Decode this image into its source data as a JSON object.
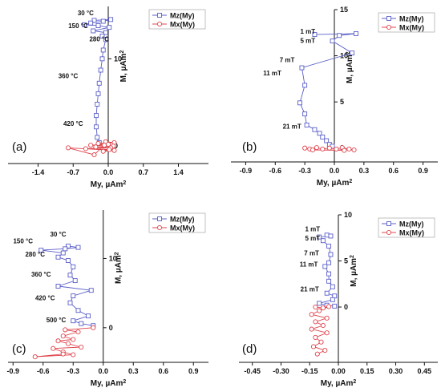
{
  "figure": {
    "colors": {
      "mz": "#5a5fc8",
      "mx": "#e0454e",
      "axis": "#111111"
    },
    "legend_labels": [
      "Mz(My)",
      "Mx(My)"
    ]
  },
  "chart_data": [
    {
      "type": "scatter",
      "panel_label": "(a)",
      "xlabel": "My, µAm²",
      "ylabel": "M, µAm²",
      "xlim": [
        -2.0,
        2.0
      ],
      "ylim": [
        -2,
        16
      ],
      "x_ticks": [
        -1.4,
        -0.7,
        0.0,
        0.7,
        1.4
      ],
      "x_tick_labels": [
        "-1.4",
        "-0.7",
        "0.0",
        "0.7",
        "1.4"
      ],
      "y_ticks": [
        0,
        10
      ],
      "y_tick_labels": [
        "0",
        "10"
      ],
      "legend": {
        "position": "top-right"
      },
      "annotations": [
        {
          "text": "30 °C",
          "x": -0.45,
          "y": 15.0
        },
        {
          "text": "150 °C",
          "x": -0.6,
          "y": 13.5
        },
        {
          "text": "280 °C",
          "x": -0.18,
          "y": 12.0
        },
        {
          "text": "360 °C",
          "x": -0.8,
          "y": 7.8
        },
        {
          "text": "420 °C",
          "x": -0.7,
          "y": 2.3
        }
      ],
      "series": [
        {
          "name": "Mz(My)",
          "marker": "square",
          "points": [
            [
              -0.28,
              14.4
            ],
            [
              0.05,
              14.5
            ],
            [
              -0.1,
              14.3
            ],
            [
              -0.35,
              14.1
            ],
            [
              -0.48,
              13.9
            ],
            [
              -0.2,
              13.8
            ],
            [
              0.02,
              13.6
            ],
            [
              -0.3,
              13.2
            ],
            [
              -0.05,
              13.0
            ],
            [
              -0.12,
              12.6
            ],
            [
              -0.05,
              12.2
            ],
            [
              -0.1,
              11.0
            ],
            [
              -0.12,
              10.0
            ],
            [
              -0.15,
              8.7
            ],
            [
              -0.18,
              7.2
            ],
            [
              -0.2,
              6.0
            ],
            [
              -0.22,
              4.8
            ],
            [
              -0.24,
              3.5
            ],
            [
              -0.24,
              2.2
            ],
            [
              -0.22,
              1.0
            ],
            [
              -0.18,
              0.4
            ]
          ]
        },
        {
          "name": "Mx(My)",
          "marker": "circle",
          "points": [
            [
              -0.05,
              0.5
            ],
            [
              0.12,
              0.4
            ],
            [
              -0.2,
              0.3
            ],
            [
              0.0,
              0.2
            ],
            [
              -0.35,
              0.1
            ],
            [
              0.1,
              0.0
            ],
            [
              -0.25,
              -0.1
            ],
            [
              0.05,
              -0.2
            ],
            [
              -0.45,
              -0.3
            ],
            [
              0.02,
              -0.4
            ],
            [
              -0.1,
              -0.6
            ],
            [
              0.12,
              -0.5
            ],
            [
              -0.8,
              -0.2
            ],
            [
              -0.28,
              -1.0
            ],
            [
              -0.08,
              0.1
            ]
          ]
        }
      ]
    },
    {
      "type": "scatter",
      "panel_label": "(b)",
      "xlabel": "My, µAm²",
      "ylabel": "M, µAm²",
      "xlim": [
        -1.05,
        1.05
      ],
      "ylim": [
        -1.5,
        15
      ],
      "x_ticks": [
        -0.9,
        -0.6,
        -0.3,
        0.0,
        0.3,
        0.6,
        0.9
      ],
      "x_tick_labels": [
        "-0.9",
        "-0.6",
        "-0.3",
        "0.0",
        "0.3",
        "0.6",
        "0.9"
      ],
      "y_ticks": [
        0,
        5,
        10,
        15
      ],
      "y_tick_labels": [
        "0",
        "5",
        "10",
        "15"
      ],
      "legend": {
        "position": "top-right"
      },
      "annotations": [
        {
          "text": "1 mT",
          "x": -0.27,
          "y": 12.4
        },
        {
          "text": "5 mT",
          "x": -0.27,
          "y": 11.4
        },
        {
          "text": "7 mT",
          "x": -0.48,
          "y": 9.3
        },
        {
          "text": "11 mT",
          "x": -0.63,
          "y": 7.9
        },
        {
          "text": "21 mT",
          "x": -0.43,
          "y": 2.1
        }
      ],
      "series": [
        {
          "name": "Mz(My)",
          "marker": "square",
          "points": [
            [
              -0.2,
              12.3
            ],
            [
              0.22,
              12.4
            ],
            [
              0.05,
              12.2
            ],
            [
              -0.02,
              11.6
            ],
            [
              0.18,
              10.3
            ],
            [
              -0.33,
              8.7
            ],
            [
              -0.3,
              6.8
            ],
            [
              -0.35,
              4.9
            ],
            [
              -0.3,
              3.7
            ],
            [
              -0.28,
              2.5
            ],
            [
              -0.2,
              2.0
            ],
            [
              -0.15,
              1.6
            ],
            [
              -0.12,
              1.2
            ],
            [
              -0.08,
              0.8
            ],
            [
              -0.05,
              0.4
            ],
            [
              -0.02,
              0.2
            ]
          ]
        },
        {
          "name": "Mx(My)",
          "marker": "circle",
          "points": [
            [
              -0.3,
              0.0
            ],
            [
              -0.25,
              -0.1
            ],
            [
              -0.18,
              0.05
            ],
            [
              -0.12,
              -0.1
            ],
            [
              -0.05,
              0.0
            ],
            [
              0.02,
              -0.1
            ],
            [
              0.08,
              0.05
            ],
            [
              0.15,
              -0.1
            ],
            [
              0.2,
              -0.2
            ],
            [
              -0.22,
              -0.2
            ],
            [
              0.1,
              -0.25
            ]
          ]
        }
      ]
    },
    {
      "type": "scatter",
      "panel_label": "(c)",
      "xlabel": "My, µAm²",
      "ylabel": "M, µAm²",
      "xlim": [
        -0.95,
        1.05
      ],
      "ylim": [
        -5,
        17
      ],
      "x_ticks": [
        -0.9,
        -0.6,
        -0.3,
        0.0,
        0.3,
        0.6,
        0.9
      ],
      "x_tick_labels": [
        "-0.9",
        "-0.6",
        "-0.3",
        "0.0",
        "0.3",
        "0.6",
        "0.9"
      ],
      "y_ticks": [
        0,
        10
      ],
      "y_tick_labels": [
        "0",
        "10"
      ],
      "legend": {
        "position": "top-right"
      },
      "annotations": [
        {
          "text": "30 °C",
          "x": -0.45,
          "y": 13.2
        },
        {
          "text": "150 °C",
          "x": -0.8,
          "y": 12.2
        },
        {
          "text": "280 °C",
          "x": -0.68,
          "y": 10.3
        },
        {
          "text": "360 °C",
          "x": -0.62,
          "y": 7.4
        },
        {
          "text": "420 °C",
          "x": -0.58,
          "y": 4.0
        },
        {
          "text": "500 °C",
          "x": -0.47,
          "y": 0.8
        }
      ],
      "series": [
        {
          "name": "Mz(My)",
          "marker": "square",
          "points": [
            [
              -0.35,
              11.8
            ],
            [
              -0.25,
              11.6
            ],
            [
              -0.38,
              11.4
            ],
            [
              -0.62,
              11.2
            ],
            [
              -0.4,
              10.8
            ],
            [
              -0.45,
              10.2
            ],
            [
              -0.35,
              9.7
            ],
            [
              -0.3,
              8.8
            ],
            [
              -0.33,
              7.6
            ],
            [
              -0.28,
              6.8
            ],
            [
              -0.45,
              6.0
            ],
            [
              -0.12,
              5.4
            ],
            [
              -0.3,
              4.6
            ],
            [
              -0.33,
              3.6
            ],
            [
              -0.25,
              2.5
            ],
            [
              -0.15,
              1.7
            ],
            [
              -0.3,
              1.0
            ],
            [
              -0.22,
              0.6
            ],
            [
              -0.1,
              0.3
            ]
          ]
        },
        {
          "name": "Mx(My)",
          "marker": "circle",
          "points": [
            [
              -0.1,
              0.0
            ],
            [
              -0.38,
              -0.3
            ],
            [
              -0.25,
              -0.6
            ],
            [
              -0.4,
              -1.2
            ],
            [
              -0.3,
              -1.7
            ],
            [
              -0.45,
              -1.9
            ],
            [
              -0.35,
              -2.3
            ],
            [
              -0.22,
              -2.8
            ],
            [
              -0.5,
              -3.0
            ],
            [
              -0.4,
              -3.5
            ],
            [
              -0.3,
              -3.9
            ],
            [
              -0.68,
              -4.2
            ],
            [
              -0.4,
              -3.8
            ]
          ]
        }
      ]
    },
    {
      "type": "scatter",
      "panel_label": "(d)",
      "xlabel": "My, µAm²",
      "ylabel": "M, µAm²",
      "xlim": [
        -0.52,
        0.52
      ],
      "ylim": [
        -6,
        10
      ],
      "x_ticks": [
        -0.45,
        -0.3,
        -0.15,
        0.0,
        0.15,
        0.3,
        0.45
      ],
      "x_tick_labels": [
        "-0.45",
        "-0.30",
        "-0.15",
        "0.00",
        "0.15",
        "0.30",
        "0.45"
      ],
      "y_ticks": [
        0,
        5,
        10
      ],
      "y_tick_labels": [
        "0",
        "5",
        "10"
      ],
      "legend": {
        "position": "top-right"
      },
      "annotations": [
        {
          "text": "1 mT",
          "x": -0.135,
          "y": 8.2
        },
        {
          "text": "5 mT",
          "x": -0.135,
          "y": 7.2
        },
        {
          "text": "7 mT",
          "x": -0.14,
          "y": 5.6
        },
        {
          "text": "11 mT",
          "x": -0.155,
          "y": 4.4
        },
        {
          "text": "21 mT",
          "x": -0.15,
          "y": 1.7
        }
      ],
      "series": [
        {
          "name": "Mz(My)",
          "marker": "square",
          "points": [
            [
              -0.06,
              7.8
            ],
            [
              -0.04,
              7.7
            ],
            [
              -0.1,
              7.6
            ],
            [
              -0.08,
              7.2
            ],
            [
              -0.05,
              6.6
            ],
            [
              -0.04,
              5.7
            ],
            [
              -0.05,
              4.8
            ],
            [
              -0.07,
              4.4
            ],
            [
              -0.05,
              3.6
            ],
            [
              -0.05,
              2.8
            ],
            [
              -0.03,
              2.2
            ],
            [
              -0.06,
              1.5
            ],
            [
              -0.02,
              1.2
            ],
            [
              -0.03,
              0.8
            ],
            [
              -0.1,
              0.4
            ],
            [
              -0.06,
              0.2
            ],
            [
              -0.02,
              0.1
            ]
          ]
        },
        {
          "name": "Mx(My)",
          "marker": "circle",
          "points": [
            [
              -0.12,
              0.0
            ],
            [
              -0.08,
              -0.1
            ],
            [
              -0.05,
              0.05
            ],
            [
              -0.1,
              -0.4
            ],
            [
              -0.14,
              -0.8
            ],
            [
              -0.06,
              -1.2
            ],
            [
              -0.12,
              -1.6
            ],
            [
              -0.08,
              -2.0
            ],
            [
              -0.14,
              -2.4
            ],
            [
              -0.06,
              -2.8
            ],
            [
              -0.12,
              -3.3
            ],
            [
              -0.09,
              -3.8
            ],
            [
              -0.13,
              -4.3
            ],
            [
              -0.07,
              -4.7
            ],
            [
              -0.11,
              -5.1
            ]
          ]
        }
      ]
    }
  ]
}
